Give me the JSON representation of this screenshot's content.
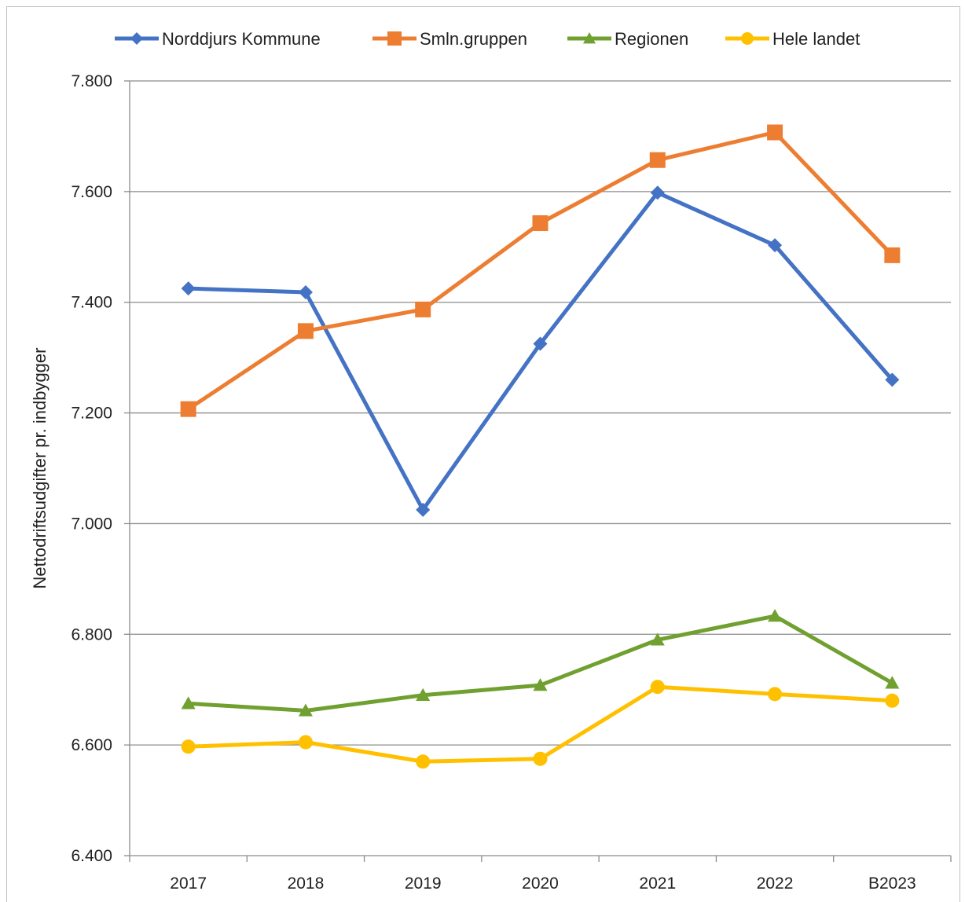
{
  "chart_data": {
    "type": "line",
    "title": "",
    "xlabel": "",
    "ylabel": "Nettodriftsudgifter pr. indbygger",
    "categories": [
      "2017",
      "2018",
      "2019",
      "2020",
      "2021",
      "2022",
      "B2023"
    ],
    "y_ticks": [
      "6.400",
      "6.600",
      "6.800",
      "7.000",
      "7.200",
      "7.400",
      "7.600",
      "7.800"
    ],
    "y_tick_values": [
      6400,
      6600,
      6800,
      7000,
      7200,
      7400,
      7600,
      7800
    ],
    "ylim": [
      6400,
      7800
    ],
    "grid": true,
    "legend_position": "top",
    "series": [
      {
        "name": "Norddjurs Kommune",
        "color": "#4472c4",
        "marker": "diamond",
        "values": [
          7425,
          7418,
          7025,
          7325,
          7598,
          7503,
          7260
        ]
      },
      {
        "name": "Smln.gruppen",
        "color": "#ed7d31",
        "marker": "square",
        "values": [
          7207,
          7348,
          7387,
          7543,
          7657,
          7707,
          7485
        ]
      },
      {
        "name": "Regionen",
        "color": "#70a030",
        "marker": "triangle",
        "values": [
          6675,
          6662,
          6690,
          6708,
          6790,
          6833,
          6712
        ]
      },
      {
        "name": "Hele landet",
        "color": "#ffc000",
        "marker": "circle",
        "values": [
          6597,
          6605,
          6570,
          6575,
          6705,
          6692,
          6680
        ]
      }
    ]
  }
}
